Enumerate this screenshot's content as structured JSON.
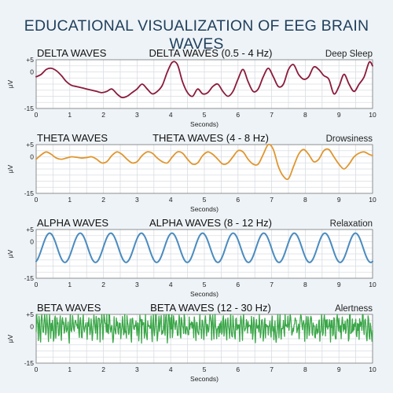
{
  "title": "EDUCATIONAL VISUALIZATION OF EEG BRAIN WAVES",
  "chart_data": [
    {
      "type": "line",
      "left_label": "DELTA WAVES",
      "title": "DELTA WAVES (0.5 - 4 Hz)",
      "state": "Deep Sleep",
      "ylabel": "μV",
      "xlabel": "Seconds)",
      "xlim": [
        0,
        10
      ],
      "ylim": [
        -15,
        5
      ],
      "ytick_labels": [
        "+5",
        "0",
        "-15"
      ],
      "yticks": [
        5,
        0,
        -15
      ],
      "xticks": [
        0,
        1,
        2,
        3,
        4,
        5,
        6,
        7,
        8,
        9,
        10
      ],
      "grid": true,
      "color": "#8b1a3a",
      "series": [
        {
          "x": [
            0,
            0.15,
            0.3,
            0.45,
            0.6,
            0.75,
            0.9,
            1.05,
            1.2,
            1.35,
            1.5,
            1.65,
            1.8,
            1.95,
            2.1,
            2.25,
            2.4,
            2.55,
            2.7,
            2.85,
            3.0,
            3.15,
            3.3,
            3.45,
            3.6,
            3.75,
            3.9,
            4.05,
            4.2,
            4.35,
            4.5,
            4.65,
            4.8,
            4.95,
            5.1,
            5.25,
            5.4,
            5.55,
            5.7,
            5.85,
            6.0,
            6.15,
            6.3,
            6.45,
            6.6,
            6.75,
            6.9,
            7.05,
            7.2,
            7.35,
            7.5,
            7.65,
            7.8,
            7.95,
            8.1,
            8.25,
            8.4,
            8.55,
            8.7,
            8.85,
            9.0,
            9.15,
            9.3,
            9.45,
            9.6,
            9.75,
            9.9,
            10.0
          ],
          "y": [
            -2,
            -1,
            1,
            1.5,
            0.5,
            -1.5,
            -4,
            -5.5,
            -6,
            -6.5,
            -7,
            -7.5,
            -8,
            -8.5,
            -8,
            -7,
            -9,
            -10.5,
            -10,
            -8.5,
            -7,
            -5,
            -7,
            -9,
            -8,
            -5.5,
            0,
            4,
            3,
            -4,
            -8.5,
            -10,
            -7,
            -9,
            -8.5,
            -6,
            -5,
            -8,
            -10,
            -8,
            -3,
            1,
            -4,
            -8,
            -7,
            -2,
            1.5,
            -2,
            -6,
            -5,
            1,
            3,
            -1,
            -3,
            -2,
            2,
            1,
            -1.5,
            -3,
            -9,
            -6,
            -1,
            -5,
            -8,
            -5,
            -2,
            4,
            2.5
          ]
        }
      ]
    },
    {
      "type": "line",
      "left_label": "THETA WAVES",
      "title": "THETA WAVES (4 - 8 Hz)",
      "state": "Drowsiness",
      "ylabel": "μV",
      "xlabel": "Seconds)",
      "xlim": [
        0,
        10
      ],
      "ylim": [
        -15,
        5
      ],
      "ytick_labels": [
        "+5",
        "0",
        "-15"
      ],
      "yticks": [
        5,
        0,
        -15
      ],
      "xticks": [
        0,
        1,
        2,
        3,
        4,
        5,
        6,
        7,
        8,
        9,
        10
      ],
      "grid": true,
      "color": "#e0962e",
      "series": [
        {
          "x": [
            0,
            0.15,
            0.3,
            0.45,
            0.6,
            0.75,
            0.9,
            1.05,
            1.2,
            1.35,
            1.5,
            1.65,
            1.8,
            1.95,
            2.1,
            2.25,
            2.4,
            2.55,
            2.7,
            2.85,
            3.0,
            3.15,
            3.3,
            3.45,
            3.6,
            3.75,
            3.9,
            4.05,
            4.2,
            4.35,
            4.5,
            4.65,
            4.8,
            4.95,
            5.1,
            5.25,
            5.4,
            5.55,
            5.7,
            5.85,
            6.0,
            6.15,
            6.3,
            6.45,
            6.6,
            6.75,
            6.9,
            7.05,
            7.2,
            7.35,
            7.5,
            7.65,
            7.8,
            7.95,
            8.1,
            8.25,
            8.4,
            8.55,
            8.7,
            8.85,
            9.0,
            9.15,
            9.3,
            9.45,
            9.6,
            9.75,
            9.9,
            10.0
          ],
          "y": [
            -1,
            0.8,
            2,
            1,
            -0.5,
            -1,
            -0.5,
            0,
            -0.2,
            -0.5,
            -0.3,
            0,
            -1,
            -2.5,
            -2,
            0.5,
            2,
            1,
            -1,
            -2.5,
            -2,
            0.5,
            2,
            1.5,
            -0.5,
            -2,
            -2.5,
            0,
            2,
            1.5,
            -1,
            -3,
            -2.5,
            0.5,
            2,
            1,
            -1,
            -3,
            -2.5,
            0,
            2.5,
            2,
            -1,
            -3,
            -3,
            1,
            5,
            3,
            -4,
            -8,
            -9,
            -4,
            1,
            3,
            1,
            -2,
            -1,
            2.5,
            3,
            0,
            -3,
            -5,
            -3,
            0,
            1.5,
            2,
            1,
            0.5
          ]
        }
      ]
    },
    {
      "type": "line",
      "left_label": "ALPHA WAVES",
      "title": "ALPHA WAVES (8 - 12 Hz)",
      "state": "Relaxation",
      "ylabel": "μV",
      "xlabel": "Seconds)",
      "xlim": [
        0,
        10
      ],
      "ylim": [
        -15,
        5
      ],
      "ytick_labels": [
        "+5",
        "0",
        "-15"
      ],
      "yticks": [
        5,
        0,
        -15
      ],
      "xticks": [
        0,
        1,
        2,
        3,
        4,
        5,
        6,
        7,
        8,
        9,
        10
      ],
      "grid": true,
      "color": "#4a8bbf",
      "wave_model": {
        "frequency_hz": 1.1,
        "amplitude": 6,
        "offset": -2.5,
        "phase": -1.2
      }
    },
    {
      "type": "line",
      "left_label": "BETA WAVES",
      "title": "BETA WAVES (12 - 30 Hz)",
      "state": "Alertness",
      "ylabel": "μV",
      "xlabel": "Seconds)",
      "xlim": [
        0,
        10
      ],
      "ylim": [
        -15,
        5
      ],
      "ytick_labels": [
        "+5",
        "0",
        "-15"
      ],
      "yticks": [
        5,
        0,
        -15
      ],
      "xticks": [
        0,
        1,
        2,
        3,
        4,
        5,
        6,
        7,
        8,
        9,
        10
      ],
      "grid": true,
      "color": "#3aa648",
      "wave_model": {
        "frequency_hz": 13,
        "amplitude": 3,
        "offset": 0,
        "noise_amplitude": 3,
        "seed": 7
      }
    }
  ]
}
